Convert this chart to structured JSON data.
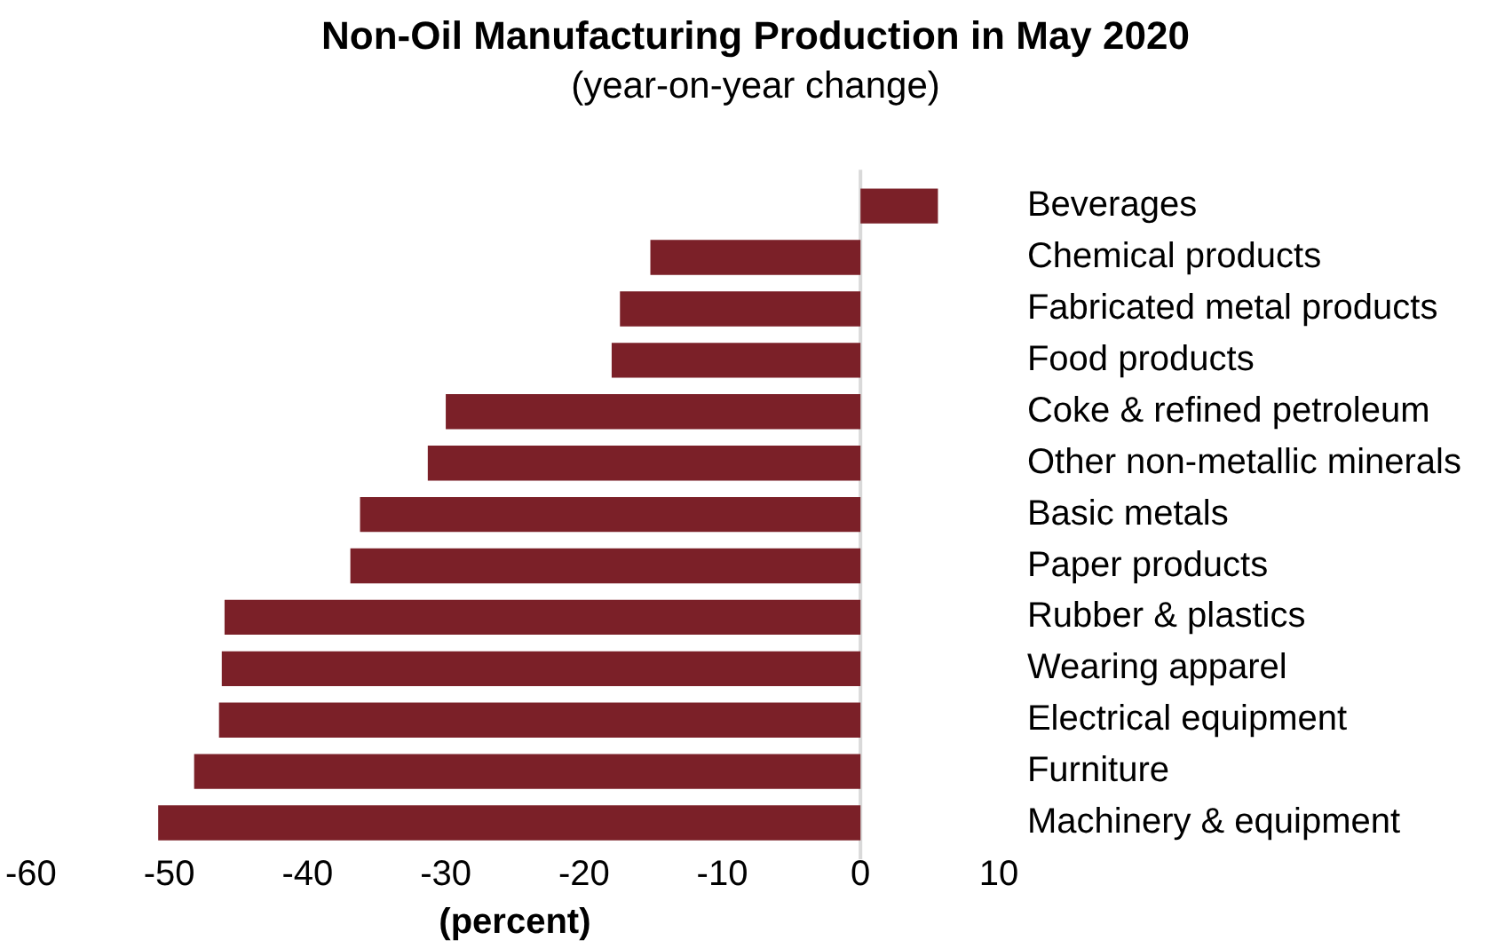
{
  "chart_data": {
    "type": "bar",
    "orientation": "horizontal",
    "title": "Non-Oil Manufacturing Production in May 2020",
    "subtitle": "(year-on-year change)",
    "xlabel": "(percent)",
    "categories": [
      "Beverages",
      "Chemical products",
      "Fabricated metal products",
      "Food products",
      "Coke & refined petroleum",
      "Other non-metallic minerals",
      "Basic metals",
      "Paper products",
      "Rubber & plastics",
      "Wearing apparel",
      "Electrical equipment",
      "Furniture",
      "Machinery & equipment"
    ],
    "values": [
      5.6,
      -15.2,
      -17.4,
      -18.0,
      -30.0,
      -31.3,
      -36.2,
      -36.9,
      -46.0,
      -46.2,
      -46.4,
      -48.2,
      -50.8
    ],
    "color": "#7b2028",
    "xlim": [
      -60,
      10
    ],
    "xticks": [
      -60,
      -50,
      -40,
      -30,
      -20,
      -10,
      0,
      10
    ],
    "grid": false,
    "legend": false,
    "ref_lines": [
      {
        "axis": "x",
        "value": 0,
        "color": "#d9d9d9"
      }
    ]
  }
}
